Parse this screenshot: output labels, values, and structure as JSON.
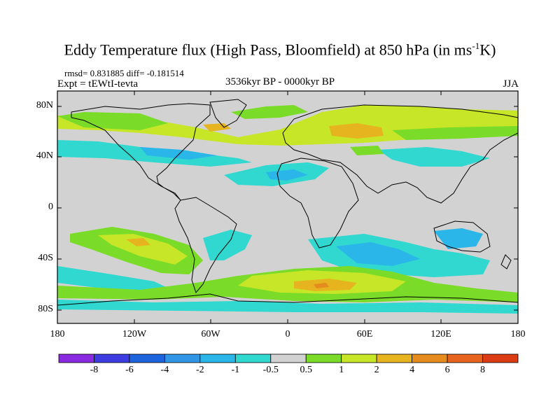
{
  "title": {
    "main": "Eddy Temperature flux (High Pass, Bloomfield) at 850 hPa (in ms",
    "sup": "-1",
    "end": "K)"
  },
  "stats": "rmsd= 0.831885  diff= -0.181514",
  "expt": "Expt = tEWtI-tevta",
  "period": "3536kyr BP - 0000kyr BP",
  "season": "JJA",
  "lat_labels": [
    "80N",
    "40N",
    "0",
    "40S",
    "80S"
  ],
  "lon_labels": [
    "180",
    "120W",
    "60W",
    "0",
    "60E",
    "120E",
    "180"
  ],
  "colorbar": {
    "labels": [
      "-8",
      "-6",
      "-4",
      "-2",
      "-1",
      "-0.5",
      "0.5",
      "1",
      "2",
      "4",
      "6",
      "8"
    ],
    "colors": [
      "#8a2be2",
      "#3c3ce0",
      "#1e64dc",
      "#3296e6",
      "#2ab6e8",
      "#30d8d0",
      "#d2d2d2",
      "#7adc28",
      "#c8e628",
      "#e6b41e",
      "#e68c1e",
      "#e6641e",
      "#dc3c14"
    ]
  },
  "colors": {
    "background": "#d2d2d2",
    "coast": "#000000"
  }
}
